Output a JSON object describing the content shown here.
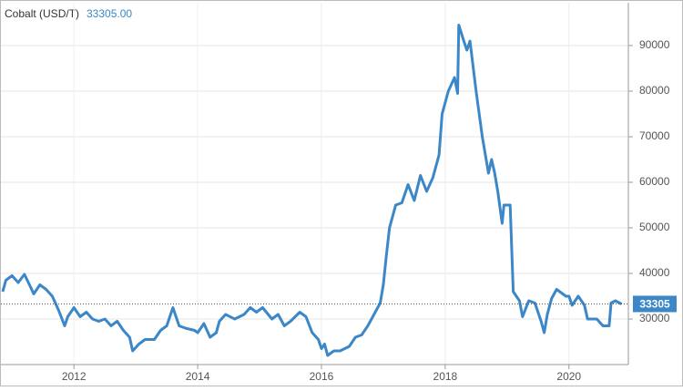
{
  "chart_data": {
    "type": "line",
    "title": "Cobalt (USD/T)",
    "current_label": "33305.00",
    "current_value": 33305,
    "x": [
      2010.85,
      2010.9,
      2011.0,
      2011.1,
      2011.2,
      2011.3,
      2011.35,
      2011.45,
      2011.55,
      2011.65,
      2011.75,
      2011.85,
      2011.9,
      2012.0,
      2012.1,
      2012.2,
      2012.3,
      2012.4,
      2012.5,
      2012.6,
      2012.7,
      2012.8,
      2012.9,
      2012.95,
      2013.05,
      2013.15,
      2013.3,
      2013.4,
      2013.5,
      2013.6,
      2013.7,
      2013.8,
      2013.95,
      2014.0,
      2014.1,
      2014.2,
      2014.3,
      2014.35,
      2014.45,
      2014.6,
      2014.75,
      2014.85,
      2014.95,
      2015.05,
      2015.2,
      2015.3,
      2015.4,
      2015.5,
      2015.65,
      2015.75,
      2015.85,
      2015.95,
      2016.0,
      2016.05,
      2016.1,
      2016.2,
      2016.3,
      2016.45,
      2016.55,
      2016.65,
      2016.75,
      2016.85,
      2016.95,
      2017.0,
      2017.05,
      2017.1,
      2017.2,
      2017.3,
      2017.4,
      2017.5,
      2017.6,
      2017.7,
      2017.8,
      2017.9,
      2017.95,
      2018.05,
      2018.15,
      2018.2,
      2018.22,
      2018.3,
      2018.35,
      2018.4,
      2018.5,
      2018.6,
      2018.7,
      2018.75,
      2018.8,
      2018.85,
      2018.92,
      2018.95,
      2019.05,
      2019.1,
      2019.2,
      2019.25,
      2019.35,
      2019.45,
      2019.55,
      2019.6,
      2019.65,
      2019.72,
      2019.8,
      2019.95,
      2020.0,
      2020.05,
      2020.15,
      2020.25,
      2020.3,
      2020.45,
      2020.55,
      2020.65,
      2020.68,
      2020.75,
      2020.85
    ],
    "series": [
      {
        "name": "Cobalt",
        "color": "#3b87c8",
        "values": [
          36000,
          38500,
          39500,
          38000,
          39800,
          37000,
          35500,
          37500,
          36500,
          35000,
          32000,
          28500,
          30500,
          32500,
          30500,
          31500,
          30000,
          29500,
          30000,
          28500,
          29500,
          27500,
          26000,
          23000,
          24500,
          25500,
          25500,
          27500,
          28500,
          32500,
          28500,
          28000,
          27500,
          27000,
          29000,
          26000,
          27000,
          29500,
          31000,
          30000,
          31000,
          32500,
          31500,
          32500,
          30000,
          31000,
          28500,
          29500,
          31500,
          30500,
          27000,
          25500,
          23500,
          24500,
          22000,
          23000,
          23000,
          24000,
          26000,
          26500,
          28500,
          31000,
          33500,
          37500,
          44000,
          50000,
          55000,
          55500,
          59500,
          56000,
          61500,
          58000,
          61000,
          66000,
          75000,
          80000,
          83000,
          79500,
          94500,
          91000,
          89000,
          91000,
          80000,
          70000,
          62000,
          65000,
          62000,
          58000,
          51000,
          55000,
          55000,
          36000,
          34000,
          30500,
          34000,
          33500,
          29500,
          27000,
          31000,
          34500,
          36500,
          35000,
          35000,
          33000,
          35000,
          33000,
          30000,
          30000,
          28500,
          28500,
          33500,
          34000,
          33305
        ]
      }
    ],
    "xlim": [
      2010.82,
      2020.96
    ],
    "ylim": [
      20000,
      100000
    ],
    "xticks": [
      2012,
      2014,
      2016,
      2018,
      2020
    ],
    "yticks": [
      30000,
      40000,
      50000,
      60000,
      70000,
      80000,
      90000
    ],
    "grid": true
  }
}
